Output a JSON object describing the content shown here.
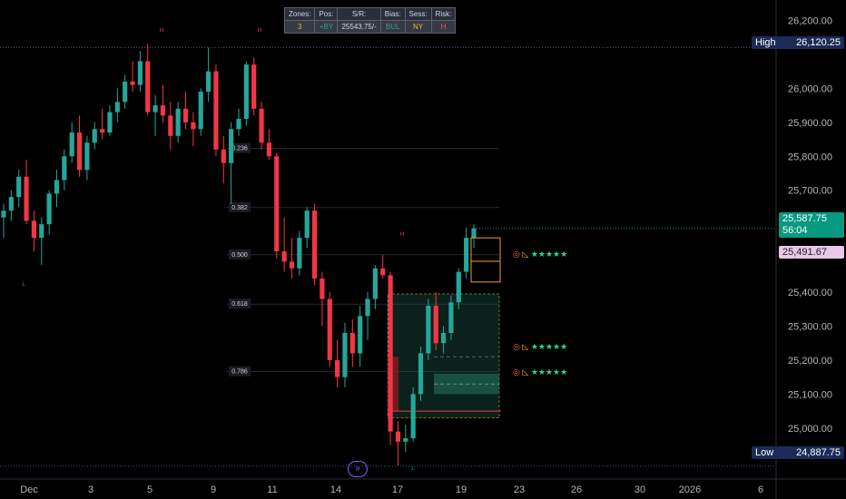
{
  "info_table": {
    "headers": [
      "Zones:",
      "Pos:",
      "S/R:",
      "Bias:",
      "Sess:",
      "Risk:"
    ],
    "values": [
      "3",
      "+BY",
      "25543.75/-",
      "BUL",
      "NY",
      "H"
    ],
    "value_colors": [
      "#f0b429",
      "#2a9d8f",
      "#d1d4dc",
      "#26a69a",
      "#f0b429",
      "#ef5350"
    ]
  },
  "price_axis": {
    "ticks": [
      "26,200.00",
      "26,000.00",
      "25,900.00",
      "25,800.00",
      "25,700.00",
      "25,400.00",
      "25,300.00",
      "25,200.00",
      "25,100.00",
      "25,000.00"
    ],
    "high_label": "High",
    "high_value": "26,120.25",
    "low_label": "Low",
    "low_value": "24,887.75",
    "current_price": "25,587.75",
    "countdown": "56:04",
    "marked_price": "25,491.67"
  },
  "date_axis": [
    "Dec",
    "3",
    "5",
    "9",
    "11",
    "14",
    "17",
    "19",
    "23",
    "26",
    "30",
    "2026",
    "6"
  ],
  "fib_levels": [
    {
      "label": "0.236",
      "price": 25823
    },
    {
      "label": "0.382",
      "price": 25649
    },
    {
      "label": "0.500",
      "price": 25510
    },
    {
      "label": "0.618",
      "price": 25365
    },
    {
      "label": "0.786",
      "price": 25166
    }
  ],
  "swing_marks": {
    "high": "H",
    "low": "L"
  },
  "targets": {
    "stars": "★★★★★",
    "target_icon": "target-icon",
    "triangle_icon": "triangle-icon"
  },
  "nav_button": "»",
  "colors": {
    "up": "#26a69a",
    "down": "#f23645",
    "zone_green": "#1b5e4a",
    "zone_red": "#7a1d1d",
    "box_orange": "#f0a030",
    "price_pill": "#089981",
    "marked_pill": "#e8c8e8"
  },
  "chart_data": {
    "type": "candlestick",
    "title": "",
    "xlabel": "",
    "ylabel": "",
    "ylim": [
      24850,
      26260
    ],
    "high": 26120.25,
    "low": 24887.75,
    "last": 25587.75,
    "series": [
      {
        "o": 25620,
        "h": 25660,
        "l": 25560,
        "c": 25640
      },
      {
        "o": 25640,
        "h": 25700,
        "l": 25610,
        "c": 25680
      },
      {
        "o": 25680,
        "h": 25760,
        "l": 25650,
        "c": 25740
      },
      {
        "o": 25740,
        "h": 25790,
        "l": 25600,
        "c": 25610
      },
      {
        "o": 25610,
        "h": 25640,
        "l": 25520,
        "c": 25560
      },
      {
        "o": 25560,
        "h": 25620,
        "l": 25480,
        "c": 25600
      },
      {
        "o": 25600,
        "h": 25700,
        "l": 25570,
        "c": 25690
      },
      {
        "o": 25690,
        "h": 25760,
        "l": 25650,
        "c": 25730
      },
      {
        "o": 25730,
        "h": 25820,
        "l": 25700,
        "c": 25800
      },
      {
        "o": 25800,
        "h": 25900,
        "l": 25780,
        "c": 25870
      },
      {
        "o": 25870,
        "h": 25920,
        "l": 25740,
        "c": 25760
      },
      {
        "o": 25760,
        "h": 25860,
        "l": 25730,
        "c": 25840
      },
      {
        "o": 25840,
        "h": 25900,
        "l": 25820,
        "c": 25880
      },
      {
        "o": 25880,
        "h": 25940,
        "l": 25850,
        "c": 25870
      },
      {
        "o": 25870,
        "h": 25950,
        "l": 25860,
        "c": 25930
      },
      {
        "o": 25930,
        "h": 26000,
        "l": 25900,
        "c": 25960
      },
      {
        "o": 25960,
        "h": 26040,
        "l": 25940,
        "c": 26020
      },
      {
        "o": 26020,
        "h": 26080,
        "l": 25990,
        "c": 26010
      },
      {
        "o": 26010,
        "h": 26110,
        "l": 25990,
        "c": 26080
      },
      {
        "o": 26080,
        "h": 26130,
        "l": 25920,
        "c": 25930
      },
      {
        "o": 25930,
        "h": 25980,
        "l": 25860,
        "c": 25950
      },
      {
        "o": 25950,
        "h": 26010,
        "l": 25900,
        "c": 25920
      },
      {
        "o": 25920,
        "h": 25960,
        "l": 25820,
        "c": 25860
      },
      {
        "o": 25860,
        "h": 25960,
        "l": 25840,
        "c": 25940
      },
      {
        "o": 25940,
        "h": 25990,
        "l": 25880,
        "c": 25900
      },
      {
        "o": 25900,
        "h": 25930,
        "l": 25830,
        "c": 25880
      },
      {
        "o": 25880,
        "h": 26000,
        "l": 25860,
        "c": 25990
      },
      {
        "o": 25990,
        "h": 26120,
        "l": 25960,
        "c": 26050
      },
      {
        "o": 26050,
        "h": 26070,
        "l": 25800,
        "c": 25820
      },
      {
        "o": 25820,
        "h": 25860,
        "l": 25720,
        "c": 25780
      },
      {
        "o": 25780,
        "h": 25900,
        "l": 25660,
        "c": 25880
      },
      {
        "o": 25880,
        "h": 25940,
        "l": 25860,
        "c": 25910
      },
      {
        "o": 25910,
        "h": 26080,
        "l": 25890,
        "c": 26070
      },
      {
        "o": 26070,
        "h": 26090,
        "l": 25920,
        "c": 25940
      },
      {
        "o": 25940,
        "h": 25960,
        "l": 25820,
        "c": 25840
      },
      {
        "o": 25840,
        "h": 25880,
        "l": 25790,
        "c": 25800
      },
      {
        "o": 25800,
        "h": 25810,
        "l": 25500,
        "c": 25520
      },
      {
        "o": 25520,
        "h": 25620,
        "l": 25460,
        "c": 25490
      },
      {
        "o": 25490,
        "h": 25560,
        "l": 25440,
        "c": 25470
      },
      {
        "o": 25470,
        "h": 25580,
        "l": 25450,
        "c": 25560
      },
      {
        "o": 25560,
        "h": 25650,
        "l": 25530,
        "c": 25640
      },
      {
        "o": 25640,
        "h": 25660,
        "l": 25420,
        "c": 25440
      },
      {
        "o": 25440,
        "h": 25460,
        "l": 25300,
        "c": 25380
      },
      {
        "o": 25380,
        "h": 25400,
        "l": 25180,
        "c": 25200
      },
      {
        "o": 25200,
        "h": 25260,
        "l": 25120,
        "c": 25150
      },
      {
        "o": 25150,
        "h": 25310,
        "l": 25120,
        "c": 25280
      },
      {
        "o": 25280,
        "h": 25320,
        "l": 25180,
        "c": 25220
      },
      {
        "o": 25220,
        "h": 25360,
        "l": 25180,
        "c": 25330
      },
      {
        "o": 25330,
        "h": 25400,
        "l": 25260,
        "c": 25380
      },
      {
        "o": 25380,
        "h": 25480,
        "l": 25350,
        "c": 25470
      },
      {
        "o": 25470,
        "h": 25510,
        "l": 25440,
        "c": 25450
      },
      {
        "o": 25450,
        "h": 25460,
        "l": 24950,
        "c": 24990
      },
      {
        "o": 24990,
        "h": 25020,
        "l": 24890,
        "c": 24960
      },
      {
        "o": 24960,
        "h": 25010,
        "l": 24930,
        "c": 24970
      },
      {
        "o": 24970,
        "h": 25120,
        "l": 24960,
        "c": 25100
      },
      {
        "o": 25100,
        "h": 25240,
        "l": 25080,
        "c": 25220
      },
      {
        "o": 25220,
        "h": 25380,
        "l": 25200,
        "c": 25360
      },
      {
        "o": 25360,
        "h": 25400,
        "l": 25230,
        "c": 25250
      },
      {
        "o": 25250,
        "h": 25300,
        "l": 25220,
        "c": 25280
      },
      {
        "o": 25280,
        "h": 25390,
        "l": 25260,
        "c": 25370
      },
      {
        "o": 25370,
        "h": 25470,
        "l": 25350,
        "c": 25460
      },
      {
        "o": 25460,
        "h": 25590,
        "l": 25440,
        "c": 25560
      },
      {
        "o": 25560,
        "h": 25600,
        "l": 25530,
        "c": 25588
      }
    ]
  }
}
